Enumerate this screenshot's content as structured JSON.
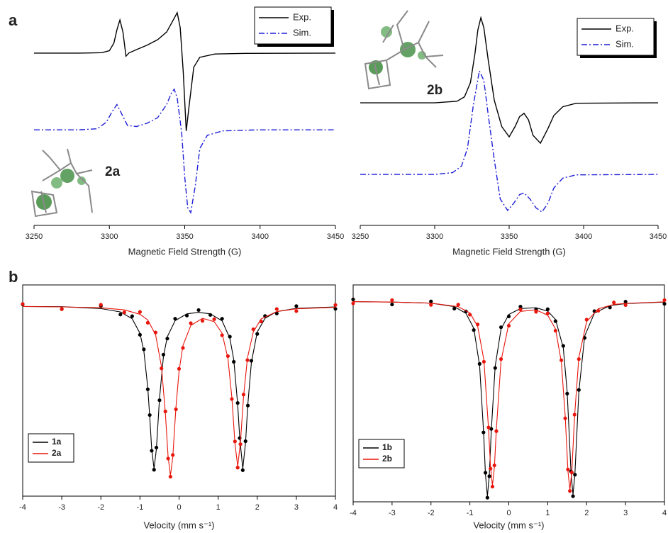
{
  "chart_data": [
    {
      "type": "line",
      "panel_label": "a",
      "annotation": "2a",
      "xlabel": "Magnetic Field Strength (G)",
      "xlim": [
        3250,
        3450
      ],
      "xticks": [
        3250,
        3300,
        3350,
        3400,
        3450
      ],
      "ylim": [
        0,
        100
      ],
      "frame": false,
      "legend": "upper right",
      "series": [
        {
          "name": "Exp.",
          "color": "#000000",
          "linestyle": "solid",
          "x": [
            3250,
            3280,
            3295,
            3300,
            3303,
            3305,
            3307,
            3309,
            3311,
            3313,
            3318,
            3325,
            3332,
            3338,
            3342,
            3345,
            3347,
            3349,
            3351,
            3353,
            3356,
            3360,
            3370,
            3390,
            3450
          ],
          "values": [
            78.4,
            78.4,
            78.6,
            79.5,
            83,
            89,
            93.5,
            88,
            77,
            78.5,
            80,
            82,
            84.5,
            88,
            93,
            96.8,
            90,
            70,
            43,
            55,
            72,
            76.5,
            78,
            78.3,
            78.4
          ]
        },
        {
          "name": "Sim.",
          "color": "#1f1fd6",
          "linestyle": "dash-dot",
          "x": [
            3250,
            3280,
            3292,
            3298,
            3302,
            3305,
            3308,
            3312,
            3318,
            3325,
            3332,
            3338,
            3341,
            3343,
            3345,
            3348,
            3350,
            3352,
            3354,
            3357,
            3360,
            3365,
            3375,
            3400,
            3450
          ],
          "values": [
            43.5,
            43.5,
            44,
            47,
            52,
            55,
            51,
            45.5,
            45,
            46.5,
            49,
            55,
            60,
            62,
            58,
            42,
            22,
            8,
            5.8,
            18,
            35,
            41,
            43,
            43.5,
            43.5
          ]
        }
      ]
    },
    {
      "type": "line",
      "annotation": "2b",
      "xlabel": "Magnetic Field Strength (G)",
      "xlim": [
        3250,
        3450
      ],
      "xticks": [
        3250,
        3300,
        3350,
        3400,
        3450
      ],
      "ylim": [
        0,
        100
      ],
      "frame": false,
      "legend": "upper right",
      "series": [
        {
          "name": "Exp.",
          "color": "#000000",
          "linestyle": "solid",
          "x": [
            3250,
            3300,
            3315,
            3320,
            3324,
            3327,
            3329,
            3331,
            3333,
            3336,
            3340,
            3345,
            3350,
            3354,
            3357,
            3360,
            3363,
            3366,
            3371,
            3376,
            3380,
            3386,
            3395,
            3450
          ],
          "values": [
            55.8,
            55.8,
            56.5,
            58.5,
            65,
            78,
            89,
            94.5,
            90,
            75,
            57,
            45,
            40.3,
            45,
            49.5,
            51,
            48,
            41,
            37.4,
            44,
            50,
            54,
            55.6,
            55.8
          ]
        },
        {
          "name": "Sim.",
          "color": "#1f1fd6",
          "linestyle": "dash-dot",
          "x": [
            3250,
            3300,
            3312,
            3318,
            3322,
            3326,
            3330,
            3333,
            3336,
            3340,
            3344,
            3349,
            3353,
            3357,
            3360,
            3364,
            3368,
            3372,
            3376,
            3380,
            3386,
            3395,
            3450
          ],
          "values": [
            23.2,
            23.2,
            24,
            27,
            35,
            55,
            70.3,
            66,
            50,
            30,
            12,
            6.8,
            10,
            14,
            14.8,
            12,
            8,
            6.1,
            10,
            17,
            21.5,
            23,
            23.2
          ]
        }
      ]
    },
    {
      "type": "scatter",
      "panel_label": "b",
      "xlabel": "Velocity (mm s⁻¹)",
      "xlim": [
        -4,
        4
      ],
      "xticks": [
        -4,
        -3,
        -2,
        -1,
        0,
        1,
        2,
        3,
        4
      ],
      "ylim": [
        0,
        100
      ],
      "frame": true,
      "legend": "lower left",
      "series": [
        {
          "name": "1a",
          "color": "#000000",
          "x": [
            -4,
            -3,
            -2,
            -1.5,
            -1.2,
            -1,
            -0.9,
            -0.8,
            -0.75,
            -0.7,
            -0.64,
            -0.58,
            -0.5,
            -0.4,
            -0.3,
            -0.1,
            0.2,
            0.5,
            0.8,
            1.1,
            1.3,
            1.4,
            1.5,
            1.55,
            1.63,
            1.7,
            1.76,
            1.85,
            2,
            2.2,
            2.5,
            3,
            4
          ],
          "values": [
            90.8,
            88.6,
            90.1,
            86.0,
            85.2,
            76.4,
            69.5,
            50.6,
            38.4,
            21.5,
            12.5,
            23.0,
            45.4,
            67.0,
            74.6,
            84.0,
            85.5,
            88.1,
            85.8,
            84.0,
            75.5,
            63.6,
            44.1,
            27.5,
            12.3,
            26.0,
            42.9,
            64.1,
            76.8,
            85.3,
            86.5,
            90.0,
            88.7
          ],
          "fit": [
            89.8,
            89.7,
            88.8,
            87.2,
            84,
            77.1,
            68.6,
            51.3,
            37.5,
            22.3,
            13,
            22.3,
            46.2,
            66.1,
            75.5,
            83.1,
            86.3,
            87,
            86.3,
            83,
            74.8,
            64.5,
            43.3,
            28.2,
            13,
            25.2,
            43.6,
            63.2,
            77.7,
            84.2,
            87.4,
            88.9,
            89.6
          ]
        },
        {
          "name": "2a",
          "color": "#e8160c",
          "x": [
            -4,
            -3,
            -2,
            -1.4,
            -1,
            -0.8,
            -0.6,
            -0.45,
            -0.35,
            -0.28,
            -0.22,
            -0.16,
            -0.08,
            0,
            0.1,
            0.3,
            0.6,
            0.9,
            1.1,
            1.25,
            1.35,
            1.43,
            1.5,
            1.57,
            1.65,
            1.75,
            1.9,
            2.1,
            2.5,
            3,
            4
          ],
          "values": [
            91.0,
            88.5,
            90.6,
            87.0,
            87.2,
            82.1,
            77.5,
            60.5,
            40.1,
            17.8,
            9.2,
            19.5,
            41.1,
            60.3,
            70.2,
            81.9,
            83.0,
            83.8,
            76.2,
            66.3,
            46.0,
            25.9,
            13.5,
            24.6,
            48.1,
            64.4,
            79.0,
            82.7,
            88.6,
            87.6,
            90.5
          ],
          "fit": [
            89.8,
            89.6,
            89.2,
            88.2,
            86.1,
            83.4,
            76.4,
            61.4,
            39.2,
            18.6,
            9.8,
            18.6,
            42,
            59.2,
            71.3,
            80.8,
            84.2,
            82.6,
            77.2,
            65.2,
            46.9,
            25,
            14.1,
            25.4,
            47.2,
            65.5,
            77.8,
            83.9,
            87.4,
            88.7,
            89.4
          ]
        }
      ]
    },
    {
      "type": "scatter",
      "xlabel": "Velocity (mm s⁻¹)",
      "xlim": [
        -4,
        4
      ],
      "xticks": [
        -4,
        -3,
        -2,
        -1,
        0,
        1,
        2,
        3,
        4
      ],
      "ylim": [
        0,
        100
      ],
      "frame": true,
      "legend": "lower left",
      "series": [
        {
          "name": "1b",
          "color": "#000000",
          "x": [
            -4,
            -3,
            -2,
            -1.4,
            -1.1,
            -0.9,
            -0.75,
            -0.65,
            -0.6,
            -0.55,
            -0.5,
            -0.45,
            -0.35,
            -0.2,
            0,
            0.3,
            0.7,
            1,
            1.2,
            1.4,
            1.5,
            1.6,
            1.65,
            1.7,
            1.8,
            1.95,
            2.2,
            2.6,
            3,
            4
          ],
          "values": [
            93.3,
            91.0,
            92.4,
            89.1,
            87.8,
            79.2,
            63.6,
            32.0,
            13.4,
            1.9,
            11.8,
            33.6,
            61.7,
            80.5,
            85.5,
            90.0,
            88.7,
            88.8,
            83.3,
            71.9,
            49.9,
            14.0,
            2.6,
            12.5,
            51.6,
            75.6,
            87.9,
            89.6,
            92.3,
            91.3
          ],
          "fit": [
            92.3,
            92.1,
            91.6,
            90,
            86.9,
            80,
            62.8,
            32.8,
            12.6,
            2.5,
            12.6,
            32.8,
            62.5,
            79.6,
            86.4,
            89.1,
            89.5,
            87.9,
            84.1,
            71,
            50.7,
            13.3,
            3.2,
            13.3,
            50.8,
            76.4,
            87,
            90.5,
            91.4,
            92.1
          ]
        },
        {
          "name": "2b",
          "color": "#e8160c",
          "x": [
            -4,
            -3,
            -2,
            -1.3,
            -1,
            -0.8,
            -0.64,
            -0.52,
            -0.47,
            -0.42,
            -0.37,
            -0.32,
            -0.2,
            0,
            0.3,
            0.7,
            1,
            1.2,
            1.35,
            1.45,
            1.52,
            1.57,
            1.62,
            1.69,
            1.8,
            2,
            2.3,
            2.7,
            3,
            4
          ],
          "values": [
            91.5,
            93.0,
            90.8,
            90.9,
            86.3,
            81.8,
            64.6,
            34.3,
            15.3,
            7.0,
            16.8,
            32.6,
            65.8,
            81.2,
            88.7,
            87.6,
            86.9,
            78.9,
            65.3,
            38.5,
            14.9,
            5.0,
            13.5,
            40.2,
            65.8,
            84.0,
            88.1,
            91.9,
            90.7,
            93.0
          ],
          "fit": [
            92.3,
            92.1,
            91.6,
            90,
            87.1,
            80.9,
            65.4,
            33.5,
            16,
            7.5,
            16,
            33.4,
            64.9,
            82.1,
            87.8,
            88.5,
            86,
            79.7,
            64.5,
            39.3,
            14.2,
            5.5,
            14.2,
            39.4,
            66.6,
            83.1,
            89,
            91,
            91.5,
            92.2
          ]
        }
      ]
    }
  ]
}
